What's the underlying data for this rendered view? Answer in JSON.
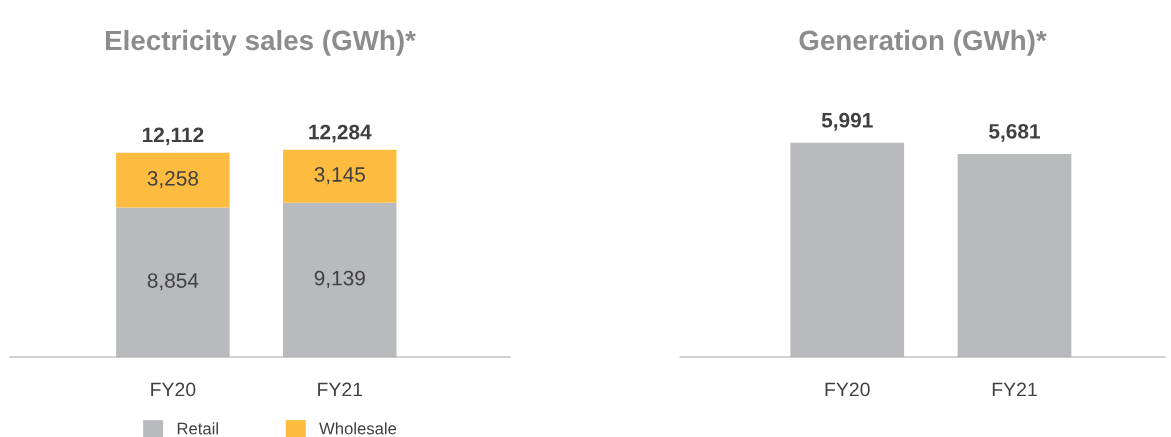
{
  "chart_data": [
    {
      "type": "bar",
      "title": "Electricity sales (GWh)*",
      "categories": [
        "FY20",
        "FY21"
      ],
      "stacked": true,
      "totals": [
        "12,112",
        "12,284"
      ],
      "legend": "bottom",
      "tick_labels": "x",
      "series": [
        {
          "name": "Retail",
          "color": "#b9babe",
          "values": [
            8854,
            9139
          ],
          "value_labels": [
            "8,854",
            "9,139"
          ]
        },
        {
          "name": "Wholesale",
          "color": "#fdbb40",
          "values": [
            3258,
            3145
          ],
          "value_labels": [
            "3,258",
            "3,145"
          ]
        }
      ]
    },
    {
      "type": "bar",
      "title": "Generation (GWh)*",
      "categories": [
        "FY20",
        "FY21"
      ],
      "tick_labels": "x",
      "color": "#b9babe",
      "values": [
        5991,
        5681
      ],
      "value_labels": [
        "5,991",
        "5,681"
      ]
    }
  ]
}
